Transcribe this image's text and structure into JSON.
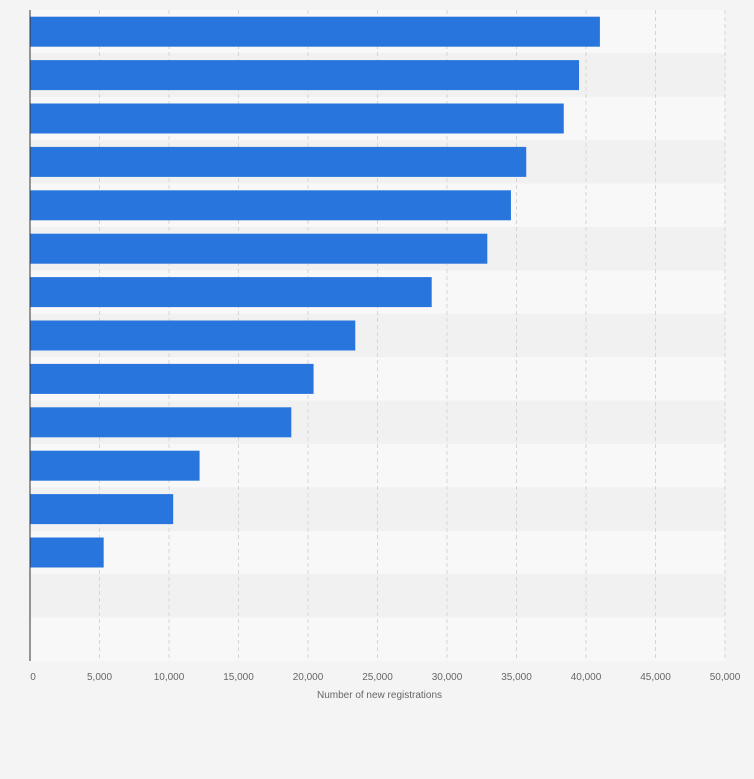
{
  "chart_data": {
    "type": "bar",
    "orientation": "horizontal",
    "categories": [
      "",
      "",
      "",
      "",
      "",
      "",
      "",
      "",
      "",
      "",
      "",
      "",
      "",
      "",
      ""
    ],
    "values": [
      41000,
      39500,
      38400,
      35700,
      34600,
      32900,
      28900,
      23400,
      20400,
      18800,
      12200,
      10300,
      5300,
      0,
      0
    ],
    "xlabel": "Number of new registrations",
    "ylabel": "",
    "xlim": [
      0,
      50000
    ],
    "x_ticks": [
      "0",
      "5,000",
      "10,000",
      "15,000",
      "20,000",
      "25,000",
      "30,000",
      "35,000",
      "40,000",
      "45,000",
      "50,000"
    ],
    "grid": "vertical dashed",
    "colors": {
      "bar": "#2876dd",
      "band_dark": "#f1f1f1",
      "band_light": "#f8f8f8",
      "grid": "#d6d6d6",
      "axis": "#333333",
      "background": "#f4f4f4"
    }
  }
}
